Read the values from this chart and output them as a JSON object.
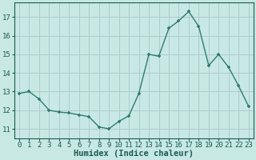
{
  "x": [
    0,
    1,
    2,
    3,
    4,
    5,
    6,
    7,
    8,
    9,
    10,
    11,
    12,
    13,
    14,
    15,
    16,
    17,
    18,
    19,
    20,
    21,
    22,
    23
  ],
  "y": [
    12.9,
    13.0,
    12.6,
    12.0,
    11.9,
    11.85,
    11.75,
    11.65,
    11.1,
    11.0,
    11.4,
    11.7,
    12.9,
    15.0,
    14.9,
    16.4,
    16.8,
    17.3,
    16.5,
    14.4,
    15.0,
    14.3,
    13.3,
    12.2
  ],
  "line_color": "#2e7d6e",
  "marker": "+",
  "bg_color": "#c8e8e4",
  "grid_color": "#b0ccca",
  "xlabel": "Humidex (Indice chaleur)",
  "ylabel_ticks": [
    11,
    12,
    13,
    14,
    15,
    16,
    17
  ],
  "xlim": [
    -0.5,
    23.5
  ],
  "ylim": [
    10.5,
    17.8
  ],
  "xticks": [
    0,
    1,
    2,
    3,
    4,
    5,
    6,
    7,
    8,
    9,
    10,
    11,
    12,
    13,
    14,
    15,
    16,
    17,
    18,
    19,
    20,
    21,
    22,
    23
  ],
  "xtick_labels": [
    "0",
    "1",
    "2",
    "3",
    "4",
    "5",
    "6",
    "7",
    "8",
    "9",
    "10",
    "11",
    "12",
    "13",
    "14",
    "15",
    "16",
    "17",
    "18",
    "19",
    "20",
    "21",
    "22",
    "23"
  ],
  "font_color": "#1a5c50",
  "linewidth": 1.0,
  "markersize": 3.5,
  "tick_fontsize": 6.5,
  "xlabel_fontsize": 7.5
}
